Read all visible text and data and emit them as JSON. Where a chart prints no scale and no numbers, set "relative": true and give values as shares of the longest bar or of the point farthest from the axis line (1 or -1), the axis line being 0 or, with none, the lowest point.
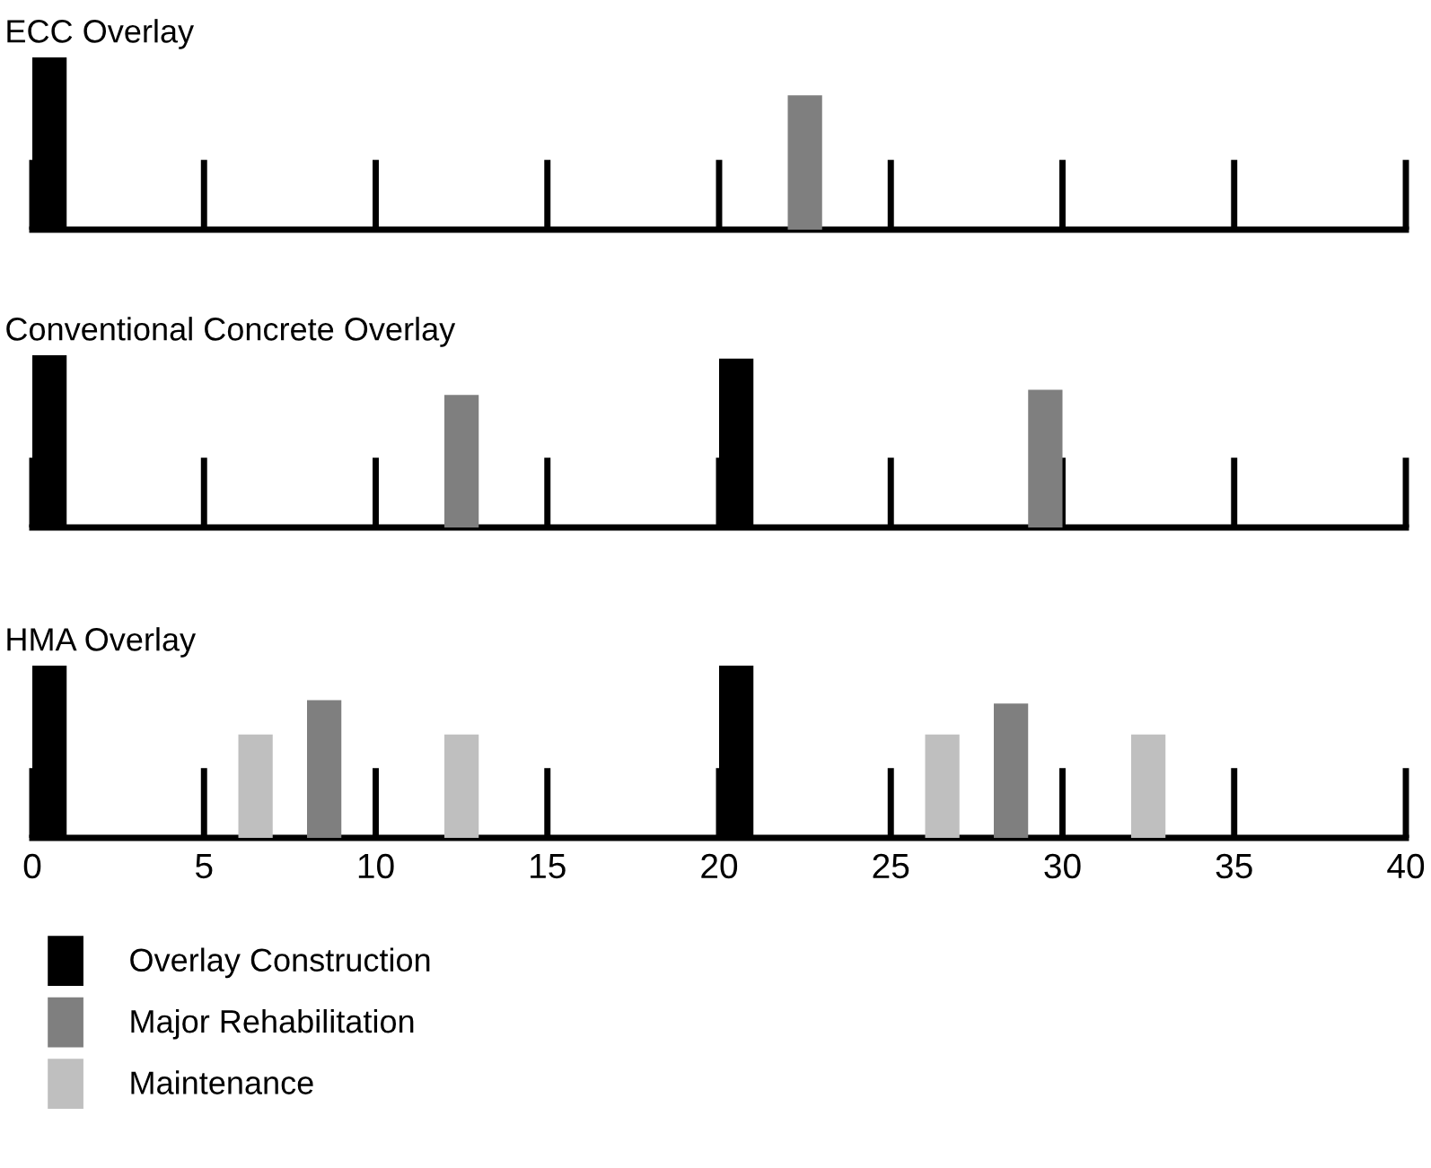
{
  "chart_data": [
    {
      "type": "bar",
      "title": "ECC Overlay",
      "relative": true,
      "xlim": [
        0,
        40
      ],
      "xticks": [
        0,
        5,
        10,
        15,
        20,
        25,
        30,
        35,
        40
      ],
      "tick_labels": false,
      "legend": "bottom",
      "series": [
        {
          "name": "Overlay Construction",
          "color": "#000000",
          "x": [
            0.5
          ],
          "values": [
            1
          ]
        },
        {
          "name": "Major Rehabilitation",
          "color": "#7f7f7f",
          "x": [
            22.5
          ],
          "values": [
            0.78
          ]
        }
      ]
    },
    {
      "type": "bar",
      "title": "Conventional Concrete Overlay",
      "relative": true,
      "xlim": [
        0,
        40
      ],
      "xticks": [
        0,
        5,
        10,
        15,
        20,
        25,
        30,
        35,
        40
      ],
      "tick_labels": false,
      "legend": "bottom",
      "series": [
        {
          "name": "Overlay Construction",
          "color": "#000000",
          "x": [
            0.5,
            20.5
          ],
          "values": [
            1,
            0.98
          ]
        },
        {
          "name": "Major Rehabilitation",
          "color": "#7f7f7f",
          "x": [
            12.5,
            29.5
          ],
          "values": [
            0.77,
            0.8
          ]
        }
      ]
    },
    {
      "type": "bar",
      "title": "HMA Overlay",
      "relative": true,
      "xlim": [
        0,
        40
      ],
      "xticks": [
        0,
        5,
        10,
        15,
        20,
        25,
        30,
        35,
        40
      ],
      "tick_labels": "x",
      "legend": "bottom",
      "series": [
        {
          "name": "Overlay Construction",
          "color": "#000000",
          "x": [
            0.5,
            20.5
          ],
          "values": [
            1,
            1
          ]
        },
        {
          "name": "Major Rehabilitation",
          "color": "#7f7f7f",
          "x": [
            8.5,
            28.5
          ],
          "values": [
            0.8,
            0.78
          ]
        },
        {
          "name": "Maintenance",
          "color": "#bfbfbf",
          "x": [
            6.5,
            12.5,
            26.5,
            32.5
          ],
          "values": [
            0.6,
            0.6,
            0.6,
            0.6
          ]
        }
      ]
    }
  ]
}
